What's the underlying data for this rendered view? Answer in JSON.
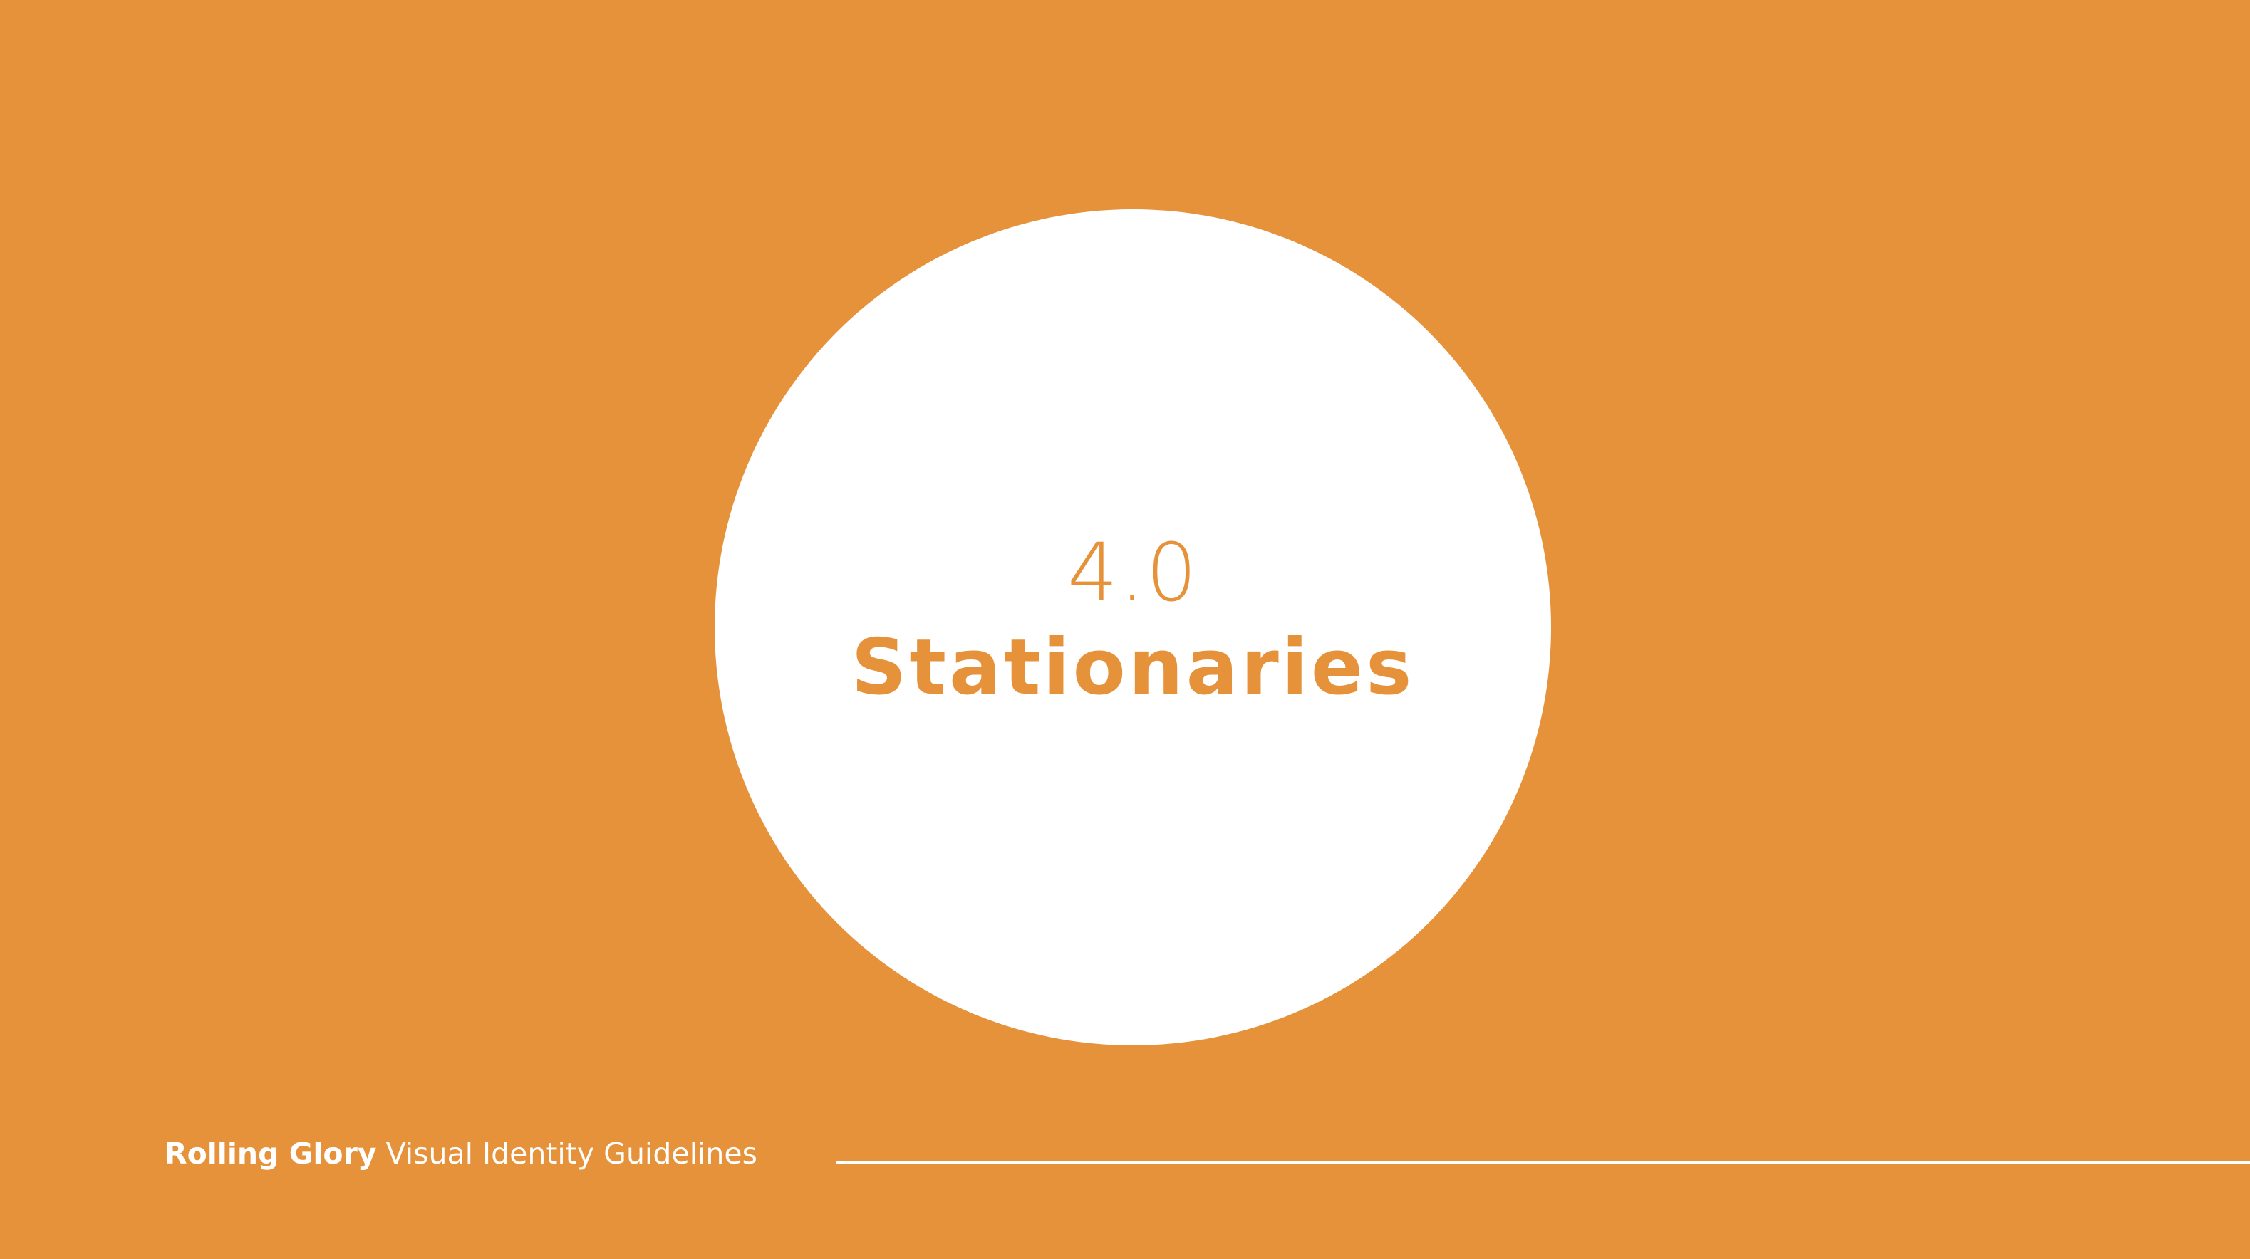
{
  "slide": {
    "section_number": "4.0",
    "section_title": "Stationaries"
  },
  "footer": {
    "brand": "Rolling Glory",
    "document_title": "Visual Identity Guidelines"
  },
  "colors": {
    "background": "#E6923B",
    "circle": "#FFFFFF",
    "accent_text": "#E6923B",
    "footer_text": "#FFFFFF"
  }
}
